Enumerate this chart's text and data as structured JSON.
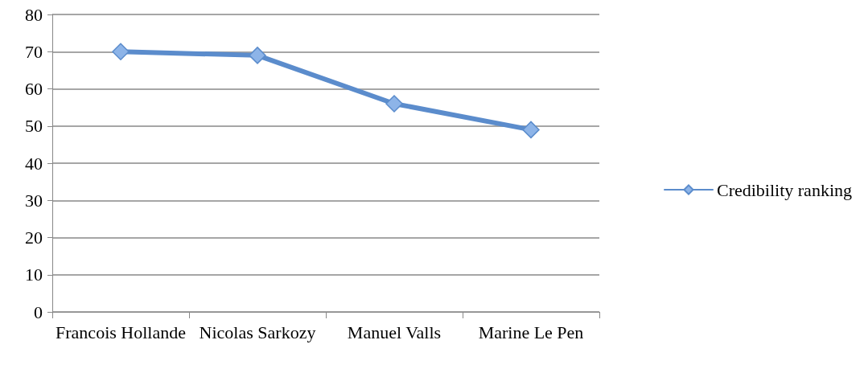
{
  "chart_data": {
    "type": "line",
    "categories": [
      "Francois Hollande",
      "Nicolas Sarkozy",
      "Manuel Valls",
      "Marine Le Pen"
    ],
    "series": [
      {
        "name": "Credibility ranking",
        "color": "#5b8ccc",
        "values": [
          70,
          69,
          56,
          49
        ]
      }
    ],
    "ylim": [
      0,
      80
    ],
    "yticks": [
      0,
      10,
      20,
      30,
      40,
      50,
      60,
      70,
      80
    ],
    "grid": "y",
    "legend": "right",
    "marker": "diamond",
    "line_style": "solid"
  }
}
